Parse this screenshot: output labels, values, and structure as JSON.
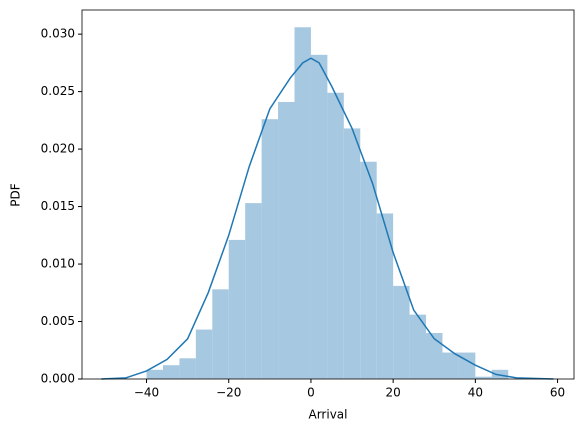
{
  "chart_data": {
    "type": "histogram",
    "xlabel": "Arrival",
    "ylabel": "PDF",
    "bins": [
      -40,
      -36,
      -32,
      -28,
      -24,
      -20,
      -16,
      -12,
      -8,
      -4,
      0,
      4,
      8,
      12,
      16,
      20,
      24,
      28,
      32,
      36,
      40,
      44,
      48
    ],
    "values": [
      0.0008,
      0.0012,
      0.0018,
      0.0043,
      0.0078,
      0.0121,
      0.0153,
      0.0226,
      0.0241,
      0.0306,
      0.0282,
      0.0249,
      0.0218,
      0.0189,
      0.0144,
      0.0081,
      0.0056,
      0.004,
      0.0023,
      0.0023,
      0.0002,
      0.0008
    ],
    "color": "#a6c8e0",
    "kde": {
      "color": "#1f77b4",
      "x": [
        -51,
        -45,
        -40,
        -35,
        -30,
        -25,
        -20,
        -15,
        -10,
        -5,
        -2,
        0,
        2,
        5,
        10,
        15,
        20,
        25,
        30,
        35,
        40,
        45,
        50,
        59
      ],
      "values": [
        0.0,
        0.0001,
        0.0007,
        0.0017,
        0.0035,
        0.0075,
        0.0125,
        0.0185,
        0.0235,
        0.0262,
        0.0275,
        0.0279,
        0.0275,
        0.0255,
        0.0218,
        0.017,
        0.011,
        0.006,
        0.0035,
        0.0022,
        0.0012,
        0.0004,
        0.0001,
        0.0
      ]
    },
    "xlim": [
      -55.7,
      64.0
    ],
    "ylim": [
      0,
      0.0321
    ],
    "xticks": [
      {
        "value": -40,
        "label": "−40"
      },
      {
        "value": -20,
        "label": "−20"
      },
      0,
      20,
      40,
      60
    ],
    "yticks": [
      {
        "value": 0,
        "label": "0.000"
      },
      {
        "value": 0.005,
        "label": "0.005"
      },
      {
        "value": 0.01,
        "label": "0.010"
      },
      {
        "value": 0.015,
        "label": "0.015"
      },
      {
        "value": 0.02,
        "label": "0.020"
      },
      {
        "value": 0.025,
        "label": "0.025"
      },
      {
        "value": 0.03,
        "label": "0.030"
      }
    ]
  }
}
